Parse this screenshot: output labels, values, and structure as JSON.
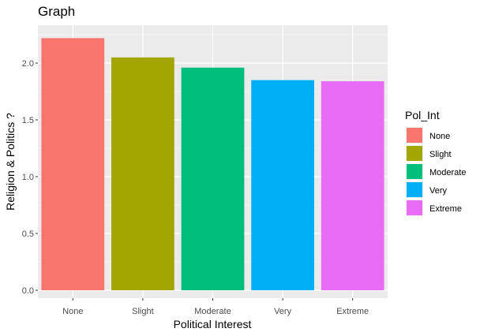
{
  "chart_data": {
    "type": "bar",
    "title": "Graph",
    "xlabel": "Political Interest",
    "ylabel": "Religion & Politics ?",
    "categories": [
      "None",
      "Slight",
      "Moderate",
      "Very",
      "Extreme"
    ],
    "values": [
      2.22,
      2.05,
      1.96,
      1.85,
      1.84
    ],
    "ylim": [
      0,
      2.3
    ],
    "yticks": [
      "0.0",
      "0.5",
      "1.0",
      "1.5",
      "2.0"
    ],
    "grid": true,
    "legend": {
      "title": "Pol_Int",
      "placement": "right",
      "entries": [
        "None",
        "Slight",
        "Moderate",
        "Very",
        "Extreme"
      ]
    },
    "colors": [
      "#F8766D",
      "#A3A500",
      "#00BF7D",
      "#00B0F6",
      "#E76BF3"
    ],
    "panel_background": "#EBEBEB",
    "grid_color": "#FFFFFF"
  }
}
